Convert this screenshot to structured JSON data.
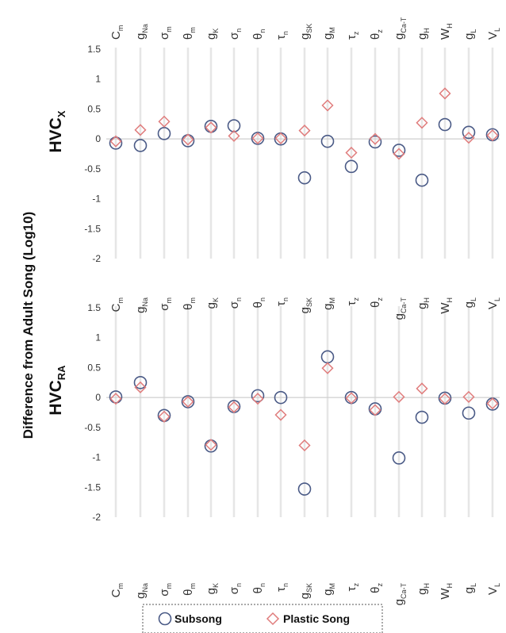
{
  "colors": {
    "subsong": "#4a5a86",
    "plastic": "#e07c7c",
    "grid": "#e6e6e6",
    "zero_line": "#cfcfcf"
  },
  "chart_data": {
    "type": "scatter",
    "ylabel": "Difference from Adult Song (Log10)",
    "ylim": [
      -2,
      1.5
    ],
    "yticks": [
      "1.5",
      "1",
      "0.5",
      "0",
      "-0.5",
      "-1",
      "-1.5",
      "-2"
    ],
    "categories": [
      {
        "base": "C",
        "sub": "m"
      },
      {
        "base": "g",
        "sub": "Na"
      },
      {
        "base": "σ",
        "sub": "m"
      },
      {
        "base": "θ",
        "sub": "m"
      },
      {
        "base": "g",
        "sub": "K"
      },
      {
        "base": "σ",
        "sub": "n"
      },
      {
        "base": "θ",
        "sub": "n"
      },
      {
        "base": "τ",
        "sub": "n"
      },
      {
        "base": "g",
        "sub": "SK"
      },
      {
        "base": "g",
        "sub": "M"
      },
      {
        "base": "τ",
        "sub": "z"
      },
      {
        "base": "θ",
        "sub": "z"
      },
      {
        "base": "g",
        "sub": "Ca-T"
      },
      {
        "base": "g",
        "sub": "H"
      },
      {
        "base": "W",
        "sub": "H"
      },
      {
        "base": "g",
        "sub": "L"
      },
      {
        "base": "V",
        "sub": "L"
      }
    ],
    "legend": [
      "Subsong",
      "Plastic Song"
    ],
    "panels": [
      {
        "label": "HVC",
        "label_sub": "X",
        "series": [
          {
            "name": "Subsong",
            "values": [
              -0.07,
              -0.11,
              0.09,
              -0.03,
              0.21,
              0.22,
              0.01,
              0.0,
              -0.65,
              -0.04,
              -0.46,
              -0.05,
              -0.19,
              -0.69,
              0.24,
              0.11,
              0.07
            ]
          },
          {
            "name": "Plastic Song",
            "values": [
              -0.04,
              0.15,
              0.29,
              -0.01,
              0.19,
              0.05,
              0.01,
              0.01,
              0.14,
              0.56,
              -0.23,
              0.0,
              -0.25,
              0.27,
              0.76,
              0.02,
              0.06
            ]
          }
        ]
      },
      {
        "label": "HVC",
        "label_sub": "RA",
        "series": [
          {
            "name": "Subsong",
            "values": [
              0.01,
              0.25,
              -0.3,
              -0.07,
              -0.81,
              -0.15,
              0.03,
              0.0,
              -1.53,
              0.68,
              0.0,
              -0.19,
              -1.01,
              -0.33,
              -0.01,
              -0.26,
              -0.11
            ]
          },
          {
            "name": "Plastic Song",
            "values": [
              -0.02,
              0.17,
              -0.32,
              -0.07,
              -0.79,
              -0.16,
              -0.02,
              -0.29,
              -0.8,
              0.49,
              -0.01,
              -0.21,
              0.01,
              0.15,
              -0.02,
              0.01,
              -0.1
            ]
          }
        ]
      }
    ]
  }
}
